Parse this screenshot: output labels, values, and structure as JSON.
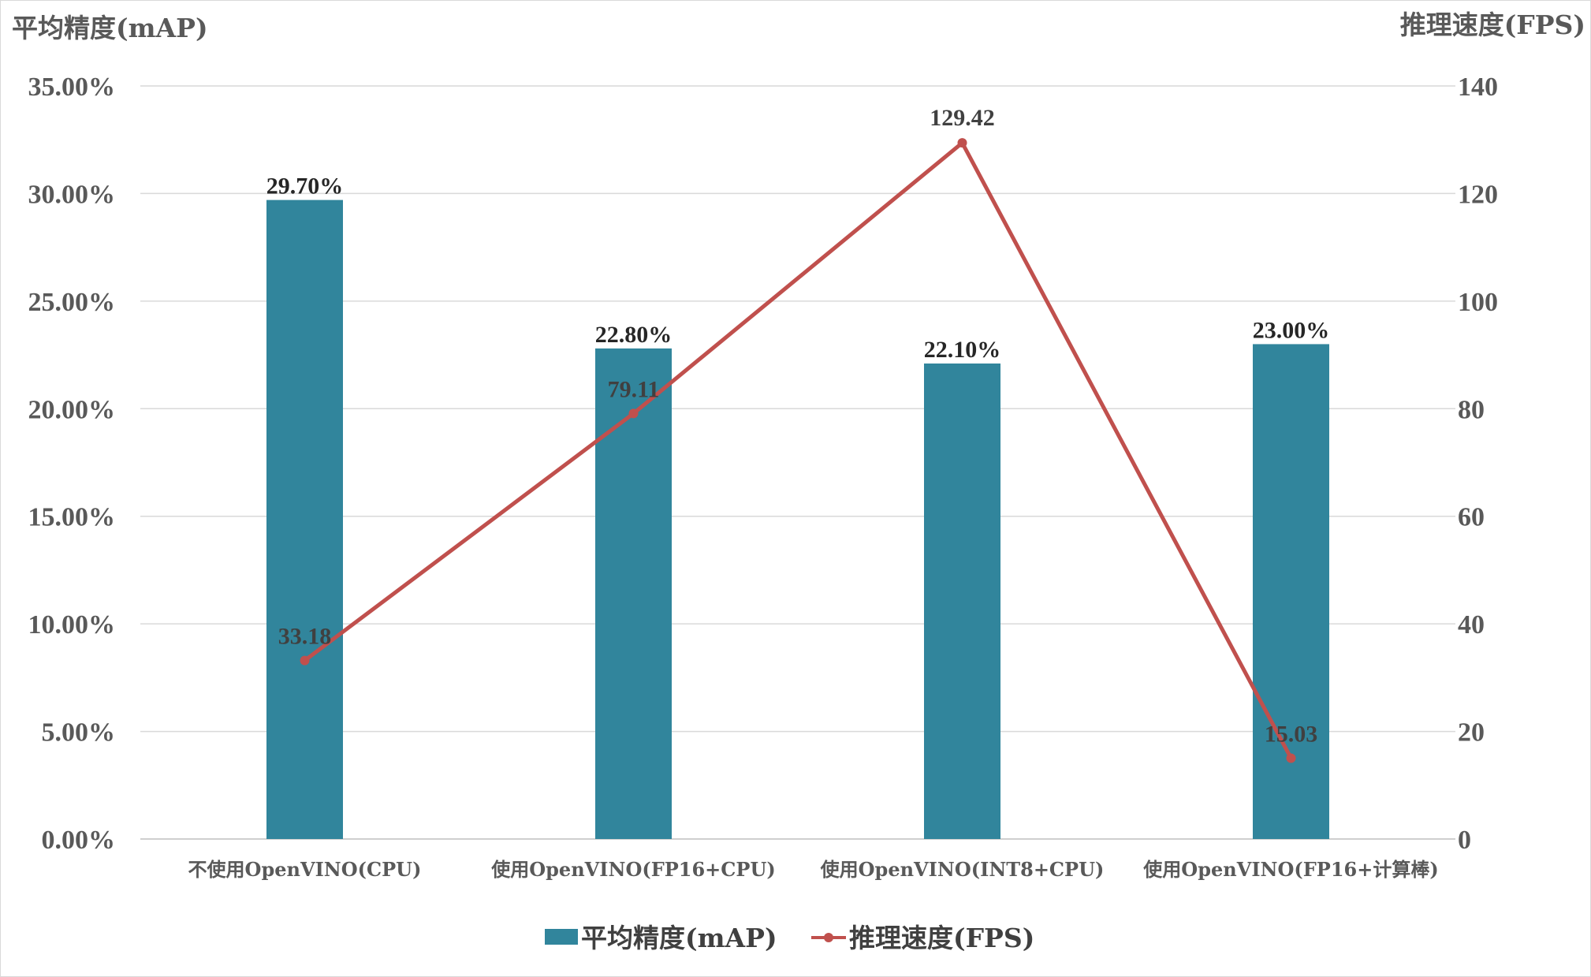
{
  "chart_data": {
    "type": "bar",
    "categories": [
      "不使用OpenVINO(CPU)",
      "使用OpenVINO(FP16+CPU)",
      "使用OpenVINO(INT8+CPU)",
      "使用OpenVINO(FP16+计算棒)"
    ],
    "series": [
      {
        "name": "平均精度(mAP)",
        "type": "bar",
        "axis": "left",
        "values": [
          29.7,
          22.8,
          22.1,
          23.0
        ],
        "labels": [
          "29.70%",
          "22.80%",
          "22.10%",
          "23.00%"
        ],
        "color": "#31859c"
      },
      {
        "name": "推理速度(FPS)",
        "type": "line",
        "axis": "right",
        "values": [
          33.18,
          79.11,
          129.42,
          15.03
        ],
        "labels": [
          "33.18",
          "79.11",
          "129.42",
          "15.03"
        ],
        "color": "#c0504d"
      }
    ],
    "y_left": {
      "label": "平均精度(mAP)",
      "ylim": [
        0,
        35
      ],
      "ticks": [
        0,
        5,
        10,
        15,
        20,
        25,
        30,
        35
      ],
      "tick_labels": [
        "0.00%",
        "5.00%",
        "10.00%",
        "15.00%",
        "20.00%",
        "25.00%",
        "30.00%",
        "35.00%"
      ]
    },
    "y_right": {
      "label": "推理速度(FPS)",
      "ylim": [
        0,
        140
      ],
      "ticks": [
        0,
        20,
        40,
        60,
        80,
        100,
        120,
        140
      ],
      "tick_labels": [
        "0",
        "20",
        "40",
        "60",
        "80",
        "100",
        "120",
        "140"
      ]
    },
    "grid": true,
    "legend": "bottom"
  }
}
